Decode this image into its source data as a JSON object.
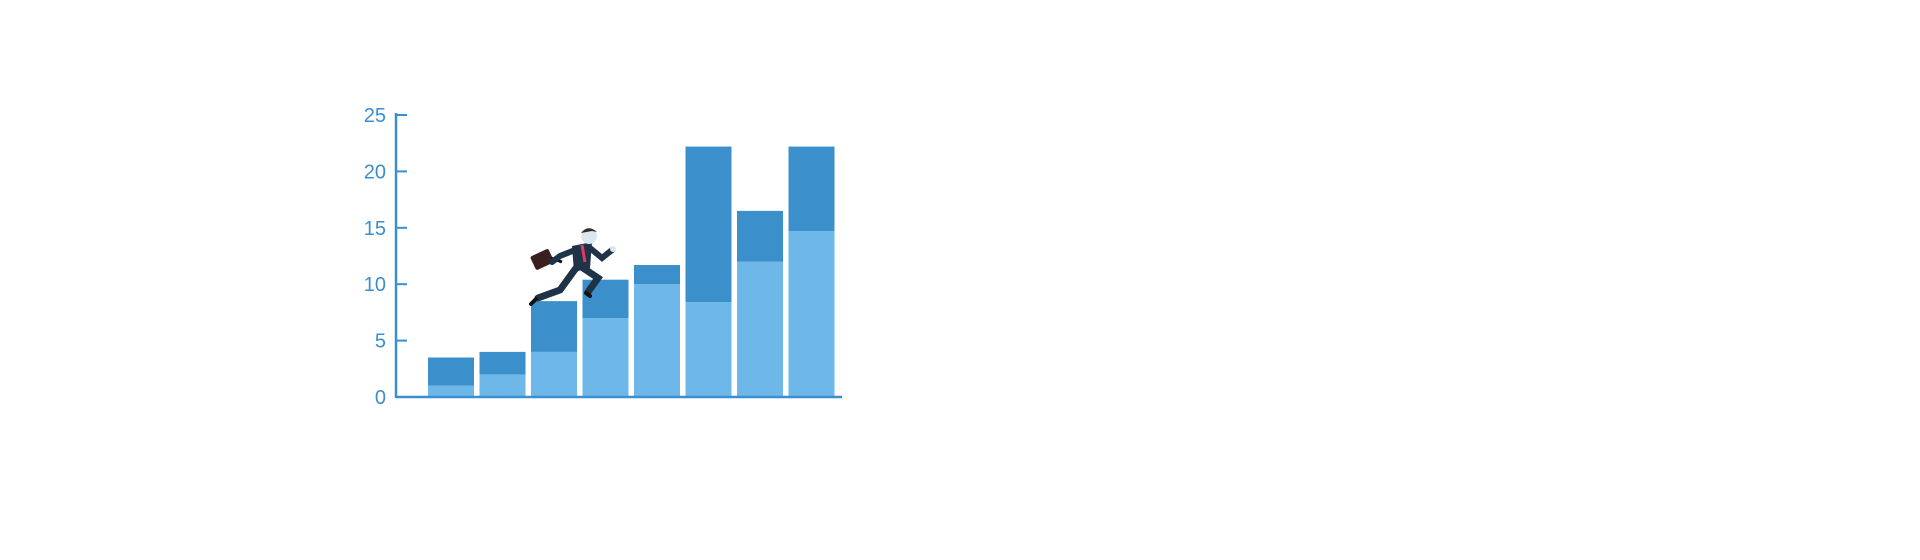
{
  "chart_data": {
    "type": "bar",
    "stacked": true,
    "categories": [
      "",
      "",
      "",
      "",
      "",
      "",
      "",
      ""
    ],
    "series": [
      {
        "values": [
          1,
          2,
          4,
          7,
          10,
          8.4,
          12,
          14.7
        ]
      },
      {
        "values": [
          2.5,
          2,
          4.5,
          3.4,
          1.7,
          13.8,
          4.5,
          7.5
        ]
      }
    ],
    "title": "",
    "xlabel": "",
    "ylabel": "",
    "ylim": [
      0,
      25
    ],
    "yticks": [
      "0",
      "5",
      "10",
      "15",
      "20",
      "25"
    ],
    "grid": false,
    "legend": "none",
    "colors": {
      "axis": "#3a8fd0",
      "tick_text": "#3a8fd0",
      "series": [
        "#6db8e8",
        "#3b8fca"
      ]
    },
    "illustration": "running-businessman-with-briefcase-icon"
  }
}
